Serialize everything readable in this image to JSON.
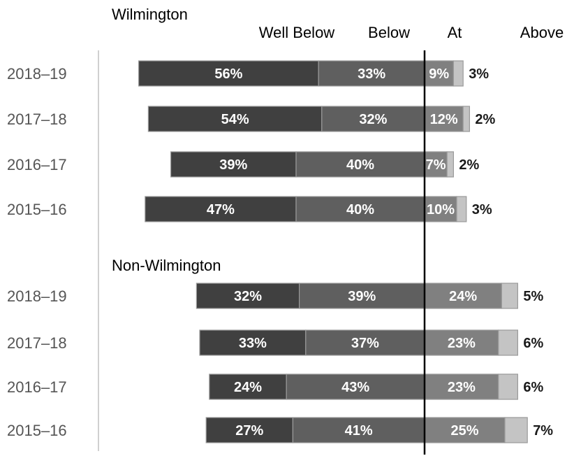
{
  "chart_data": {
    "type": "bar",
    "subtype": "diverging-stacked-horizontal",
    "legend": [
      "Well Below",
      "Below",
      "At",
      "Above"
    ],
    "colors": {
      "well_below": "#404040",
      "below": "#5f5f5f",
      "at": "#808080",
      "above": "#c4c4c4",
      "reference_line": "#000000",
      "axis_line": "#d0d0d0"
    },
    "groups": [
      {
        "name": "Wilmington",
        "rows": [
          {
            "year": "2018–19",
            "well_below": 56,
            "below": 33,
            "at": 9,
            "above": 3,
            "labels": [
              "56%",
              "33%",
              "9%",
              "3%"
            ]
          },
          {
            "year": "2017–18",
            "well_below": 54,
            "below": 32,
            "at": 12,
            "above": 2,
            "labels": [
              "54%",
              "32%",
              "12%",
              "2%"
            ]
          },
          {
            "year": "2016–17",
            "well_below": 39,
            "below": 40,
            "at": 7,
            "above": 2,
            "labels": [
              "39%",
              "40%",
              "7%",
              "2%"
            ]
          },
          {
            "year": "2015–16",
            "well_below": 47,
            "below": 40,
            "at": 10,
            "above": 3,
            "labels": [
              "47%",
              "40%",
              "10%",
              "3%"
            ]
          }
        ]
      },
      {
        "name": "Non-Wilmington",
        "rows": [
          {
            "year": "2018–19",
            "well_below": 32,
            "below": 39,
            "at": 24,
            "above": 5,
            "labels": [
              "32%",
              "39%",
              "24%",
              "5%"
            ]
          },
          {
            "year": "2017–18",
            "well_below": 33,
            "below": 37,
            "at": 23,
            "above": 6,
            "labels": [
              "33%",
              "37%",
              "23%",
              "6%"
            ]
          },
          {
            "year": "2016–17",
            "well_below": 24,
            "below": 43,
            "at": 23,
            "above": 6,
            "labels": [
              "24%",
              "43%",
              "23%",
              "6%"
            ]
          },
          {
            "year": "2015–16",
            "well_below": 27,
            "below": 41,
            "at": 25,
            "above": 7,
            "labels": [
              "27%",
              "41%",
              "25%",
              "7%"
            ]
          }
        ]
      }
    ]
  }
}
